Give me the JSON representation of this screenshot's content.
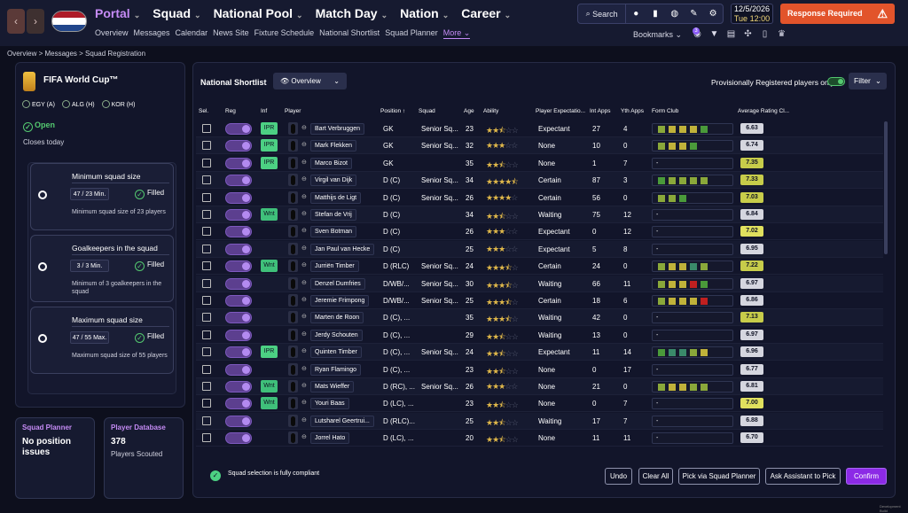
{
  "nav": {
    "back": "‹",
    "forward": "›",
    "main": [
      {
        "label": "Portal",
        "active": true
      },
      {
        "label": "Squad"
      },
      {
        "label": "National Pool"
      },
      {
        "label": "Match Day"
      },
      {
        "label": "Nation"
      },
      {
        "label": "Career"
      }
    ],
    "sub": [
      "Overview",
      "Messages",
      "Calendar",
      "News Site",
      "Fixture Schedule",
      "National Shortlist",
      "Squad Planner",
      "More"
    ],
    "search": "Search",
    "date": "12/5/2026",
    "time": "Tue 12:00",
    "response": "Response Required",
    "bookmarks": "Bookmarks",
    "notif": "3"
  },
  "breadcrumb": "Overview > Messages > Squad Registration",
  "competition": {
    "title": "FIFA World Cup™",
    "groups": [
      "EGY (A)",
      "ALG (H)",
      "KOR (H)"
    ],
    "status": "Open",
    "closes": "Closes today"
  },
  "rules": [
    {
      "title": "Minimum squad size",
      "value": "47 / 23 Min.",
      "state": "Filled",
      "desc": "Minimum squad size of 23 players"
    },
    {
      "title": "Goalkeepers in the squad",
      "value": "3 / 3 Min.",
      "state": "Filled",
      "desc": "Minimum of 3 goalkeepers in the squad"
    },
    {
      "title": "Maximum squad size",
      "value": "47 / 55 Max.",
      "state": "Filled",
      "desc": "Maximum squad size of 55 players"
    }
  ],
  "cards": [
    {
      "title": "Squad Planner",
      "value": "No position issues",
      "sub": ""
    },
    {
      "title": "Player Database",
      "value": "378",
      "sub": "Players Scouted"
    }
  ],
  "shortlist": {
    "title": "National Shortlist",
    "view": "Overview",
    "prov": "Provisionally Registered players only",
    "filter": "Filter",
    "headers": [
      "Sel.",
      "Reg",
      "Inf",
      "Player",
      "Position",
      "Squad",
      "Age",
      "Ability",
      "Player Expectatio...",
      "Int Apps",
      "Yth Apps",
      "Form Club",
      "Average Rating Cl..."
    ],
    "rows": [
      {
        "inf": "IPR",
        "name": "Bart Verbruggen",
        "pos": "GK",
        "squad": "Senior Sq...",
        "age": "23",
        "stars": 2.5,
        "exp": "Expectant",
        "int": "27",
        "yth": "4",
        "form": [
          "#8aa83a",
          "#c0b23a",
          "#c0b23a",
          "#c0b23a",
          "#4a9a3a"
        ],
        "rat": "6.63",
        "rc": "w"
      },
      {
        "inf": "IPR",
        "name": "Mark Flekken",
        "pos": "GK",
        "squad": "Senior Sq...",
        "age": "32",
        "stars": 3,
        "exp": "None",
        "int": "10",
        "yth": "0",
        "form": [
          "#8aa83a",
          "#c0b23a",
          "#c0b23a",
          "#4a9a3a"
        ],
        "rat": "6.74",
        "rc": "w"
      },
      {
        "inf": "IPR",
        "name": "Marco Bizot",
        "pos": "GK",
        "squad": "",
        "age": "35",
        "stars": 2.5,
        "exp": "None",
        "int": "1",
        "yth": "7",
        "form": [],
        "rat": "7.35",
        "rc": "g"
      },
      {
        "inf": "",
        "name": "Virgil van Dijk",
        "pos": "D (C)",
        "squad": "Senior Sq...",
        "age": "34",
        "stars": 4.5,
        "exp": "Certain",
        "int": "87",
        "yth": "3",
        "form": [
          "#4a9a3a",
          "#8aa83a",
          "#8aa83a",
          "#8aa83a",
          "#8aa83a"
        ],
        "rat": "7.33",
        "rc": "g"
      },
      {
        "inf": "",
        "name": "Matthijs de Ligt",
        "pos": "D (C)",
        "squad": "Senior Sq...",
        "age": "26",
        "stars": 4,
        "exp": "Certain",
        "int": "56",
        "yth": "0",
        "form": [
          "#8aa83a",
          "#8aa83a",
          "#4a9a3a"
        ],
        "rat": "7.03",
        "rc": "g"
      },
      {
        "inf": "Wnt",
        "name": "Stefan de Vrij",
        "pos": "D (C)",
        "squad": "",
        "age": "34",
        "stars": 2.5,
        "exp": "Waiting",
        "int": "75",
        "yth": "12",
        "form": [],
        "rat": "6.84",
        "rc": "w"
      },
      {
        "inf": "",
        "name": "Sven Botman",
        "pos": "D (C)",
        "squad": "",
        "age": "26",
        "stars": 3,
        "exp": "Expectant",
        "int": "0",
        "yth": "12",
        "form": [],
        "rat": "7.02",
        "rc": "y"
      },
      {
        "inf": "",
        "name": "Jan Paul van Hecke",
        "pos": "D (C)",
        "squad": "",
        "age": "25",
        "stars": 3,
        "exp": "Expectant",
        "int": "5",
        "yth": "8",
        "form": [],
        "rat": "6.95",
        "rc": "w"
      },
      {
        "inf": "Wnt",
        "name": "Jurriën Timber",
        "pos": "D (RLC)",
        "squad": "Senior Sq...",
        "age": "24",
        "stars": 3.5,
        "exp": "Certain",
        "int": "24",
        "yth": "0",
        "form": [
          "#8aa83a",
          "#c0b23a",
          "#c0b23a",
          "#3a8a6a",
          "#8aa83a"
        ],
        "rat": "7.22",
        "rc": "g"
      },
      {
        "inf": "",
        "name": "Denzel Dumfries",
        "pos": "D/WB/...",
        "squad": "Senior Sq...",
        "age": "30",
        "stars": 3.5,
        "exp": "Waiting",
        "int": "66",
        "yth": "11",
        "form": [
          "#8aa83a",
          "#c0b23a",
          "#c0b23a",
          "#c02020",
          "#4a9a3a"
        ],
        "rat": "6.97",
        "rc": "w"
      },
      {
        "inf": "",
        "name": "Jeremie Frimpong",
        "pos": "D/WB/...",
        "squad": "Senior Sq...",
        "age": "25",
        "stars": 3.5,
        "exp": "Certain",
        "int": "18",
        "yth": "6",
        "form": [
          "#8aa83a",
          "#c0b23a",
          "#c0b23a",
          "#c0b23a",
          "#c02020"
        ],
        "rat": "6.86",
        "rc": "w"
      },
      {
        "inf": "",
        "name": "Marten de Roon",
        "pos": "D (C), ...",
        "squad": "",
        "age": "35",
        "stars": 3.5,
        "exp": "Waiting",
        "int": "42",
        "yth": "0",
        "form": [],
        "rat": "7.13",
        "rc": "g"
      },
      {
        "inf": "",
        "name": "Jerdy Schouten",
        "pos": "D (C), ...",
        "squad": "",
        "age": "29",
        "stars": 2.5,
        "exp": "Waiting",
        "int": "13",
        "yth": "0",
        "form": [],
        "rat": "6.97",
        "rc": "w"
      },
      {
        "inf": "IPR",
        "name": "Quinten Timber",
        "pos": "D (C), ...",
        "squad": "Senior Sq...",
        "age": "24",
        "stars": 2.5,
        "exp": "Expectant",
        "int": "11",
        "yth": "14",
        "form": [
          "#4a9a3a",
          "#3a8a6a",
          "#3a8a6a",
          "#8aa83a",
          "#c0b23a"
        ],
        "rat": "6.96",
        "rc": "w"
      },
      {
        "inf": "",
        "name": "Ryan Flamingo",
        "pos": "D (C), ...",
        "squad": "",
        "age": "23",
        "stars": 2.5,
        "exp": "None",
        "int": "0",
        "yth": "17",
        "form": [],
        "rat": "6.77",
        "rc": "w"
      },
      {
        "inf": "Wnt",
        "name": "Mats Wieffer",
        "pos": "D (RC), ...",
        "squad": "Senior Sq...",
        "age": "26",
        "stars": 3,
        "exp": "None",
        "int": "21",
        "yth": "0",
        "form": [
          "#8aa83a",
          "#c0b23a",
          "#c0b23a",
          "#8aa83a",
          "#8aa83a"
        ],
        "rat": "6.81",
        "rc": "w"
      },
      {
        "inf": "Wnt",
        "name": "Youri Baas",
        "pos": "D (LC), ...",
        "squad": "",
        "age": "23",
        "stars": 2.5,
        "exp": "None",
        "int": "0",
        "yth": "7",
        "form": [],
        "rat": "7.00",
        "rc": "y"
      },
      {
        "inf": "",
        "name": "Lutsharel Geertrui...",
        "pos": "D (RLC)...",
        "squad": "",
        "age": "25",
        "stars": 2.5,
        "exp": "Waiting",
        "int": "17",
        "yth": "7",
        "form": [],
        "rat": "6.88",
        "rc": "w"
      },
      {
        "inf": "",
        "name": "Jorrel Hato",
        "pos": "D (LC), ...",
        "squad": "",
        "age": "20",
        "stars": 2.5,
        "exp": "None",
        "int": "11",
        "yth": "11",
        "form": [],
        "rat": "6.70",
        "rc": "w"
      }
    ],
    "compliance": "Squad selection is fully compliant",
    "buttons": [
      "Undo",
      "Clear All",
      "Pick via Squad Planner",
      "Ask Assistant to Pick",
      "Confirm"
    ]
  },
  "dev": "Development Build"
}
